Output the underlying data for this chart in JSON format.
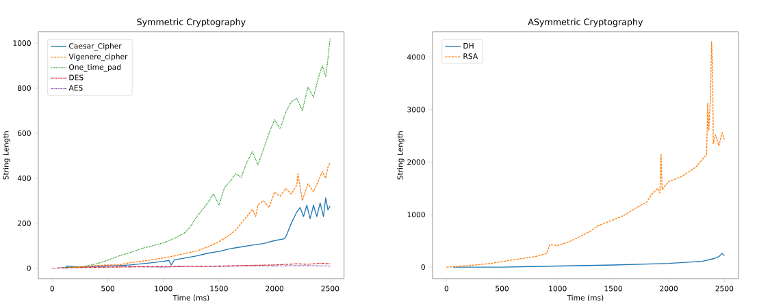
{
  "chart_data": [
    {
      "type": "line",
      "title": "Symmetric Cryptography",
      "xlabel": "Time (ms)",
      "ylabel": "String Length",
      "xlim": [
        -125,
        2625
      ],
      "ylim": [
        -46,
        1050
      ],
      "xticks": [
        0,
        500,
        1000,
        1500,
        2000,
        2500
      ],
      "yticks": [
        0,
        200,
        400,
        600,
        800,
        1000
      ],
      "legend": "top left",
      "grid": false,
      "series": [
        {
          "name": "Caesar_Cipher",
          "color": "#1f77b4",
          "line_style": "solid",
          "x": [
            120,
            130,
            250,
            400,
            500,
            600,
            700,
            800,
            900,
            1000,
            1050,
            1070,
            1100,
            1200,
            1300,
            1400,
            1500,
            1600,
            1700,
            1800,
            1900,
            2000,
            2080,
            2100,
            2150,
            2180,
            2200,
            2230,
            2260,
            2290,
            2320,
            2350,
            2380,
            2410,
            2440,
            2460,
            2480,
            2500
          ],
          "values": [
            0,
            10,
            5,
            8,
            10,
            12,
            15,
            20,
            25,
            31,
            35,
            15,
            38,
            46,
            55,
            67,
            75,
            87,
            95,
            103,
            110,
            123,
            130,
            138,
            200,
            230,
            250,
            270,
            230,
            280,
            220,
            280,
            230,
            290,
            230,
            313,
            260,
            277
          ]
        },
        {
          "name": "Vigenere_cipher",
          "color": "#ff7f0e",
          "line_style": "dashed",
          "x": [
            150,
            200,
            300,
            400,
            500,
            600,
            700,
            800,
            900,
            1000,
            1100,
            1200,
            1300,
            1400,
            1500,
            1600,
            1650,
            1700,
            1750,
            1800,
            1830,
            1850,
            1900,
            1950,
            2000,
            2050,
            2100,
            2150,
            2200,
            2210,
            2250,
            2300,
            2350,
            2400,
            2430,
            2460,
            2480,
            2500
          ],
          "values": [
            3,
            5,
            8,
            12,
            15,
            15,
            25,
            31,
            38,
            46,
            55,
            67,
            77,
            95,
            118,
            150,
            170,
            200,
            230,
            262,
            230,
            280,
            300,
            270,
            338,
            320,
            354,
            330,
            370,
            420,
            300,
            375,
            340,
            395,
            430,
            400,
            450,
            470
          ]
        },
        {
          "name": "One_time_pad",
          "color": "#2ca02c",
          "line_style": "dotted",
          "x": [
            100,
            200,
            300,
            400,
            500,
            600,
            700,
            800,
            900,
            1000,
            1100,
            1200,
            1250,
            1300,
            1350,
            1400,
            1450,
            1500,
            1550,
            1600,
            1650,
            1700,
            1750,
            1800,
            1850,
            1900,
            1950,
            2000,
            2050,
            2100,
            2150,
            2200,
            2250,
            2300,
            2350,
            2400,
            2430,
            2460,
            2480,
            2500
          ],
          "values": [
            3,
            5,
            10,
            20,
            36,
            55,
            70,
            87,
            100,
            113,
            133,
            160,
            190,
            230,
            260,
            292,
            330,
            282,
            360,
            385,
            420,
            405,
            470,
            518,
            460,
            528,
            600,
            660,
            620,
            692,
            740,
            754,
            700,
            805,
            760,
            856,
            900,
            850,
            930,
            1020
          ]
        },
        {
          "name": "DES",
          "color": "#d62728",
          "line_style": "dashdot",
          "x": [
            50,
            500,
            1000,
            1500,
            2000,
            2200,
            2300,
            2400,
            2500
          ],
          "values": [
            2,
            5,
            8,
            10,
            15,
            20,
            18,
            22,
            20
          ]
        },
        {
          "name": "AES",
          "color": "#9467bd",
          "line_style": "dashdot",
          "x": [
            0,
            250,
            500,
            750,
            1000,
            1250,
            1500,
            1750,
            2000,
            2250,
            2500
          ],
          "values": [
            0,
            5,
            12,
            8,
            5,
            10,
            8,
            12,
            10,
            12,
            10
          ]
        }
      ]
    },
    {
      "type": "line",
      "title": "ASymmetric Cryptography",
      "xlabel": "Time (ms)",
      "ylabel": "String Length",
      "xlim": [
        -125,
        2625
      ],
      "ylim": [
        -220,
        4480
      ],
      "xticks": [
        0,
        500,
        1000,
        1500,
        2000,
        2500
      ],
      "yticks": [
        0,
        1000,
        2000,
        3000,
        4000
      ],
      "legend": "top left",
      "grid": false,
      "series": [
        {
          "name": "DH",
          "color": "#1f77b4",
          "line_style": "solid",
          "x": [
            60,
            500,
            1000,
            1500,
            2000,
            2300,
            2400,
            2450,
            2480,
            2500
          ],
          "values": [
            0,
            0,
            20,
            40,
            70,
            110,
            160,
            200,
            260,
            220
          ]
        },
        {
          "name": "RSA",
          "color": "#ff7f0e",
          "line_style": "dashed",
          "x": [
            0,
            200,
            400,
            600,
            800,
            900,
            930,
            1000,
            1100,
            1200,
            1300,
            1350,
            1400,
            1500,
            1600,
            1700,
            1800,
            1850,
            1900,
            1920,
            1930,
            1940,
            2000,
            2100,
            2200,
            2250,
            2300,
            2340,
            2350,
            2360,
            2375,
            2385,
            2395,
            2400,
            2420,
            2450,
            2480,
            2500
          ],
          "values": [
            0,
            30,
            70,
            140,
            200,
            260,
            430,
            410,
            480,
            580,
            690,
            770,
            820,
            900,
            990,
            1120,
            1240,
            1390,
            1500,
            1410,
            2160,
            1480,
            1630,
            1710,
            1840,
            1920,
            2050,
            2140,
            3120,
            2600,
            3240,
            4290,
            3670,
            2350,
            2520,
            2310,
            2560,
            2430
          ]
        }
      ]
    }
  ]
}
